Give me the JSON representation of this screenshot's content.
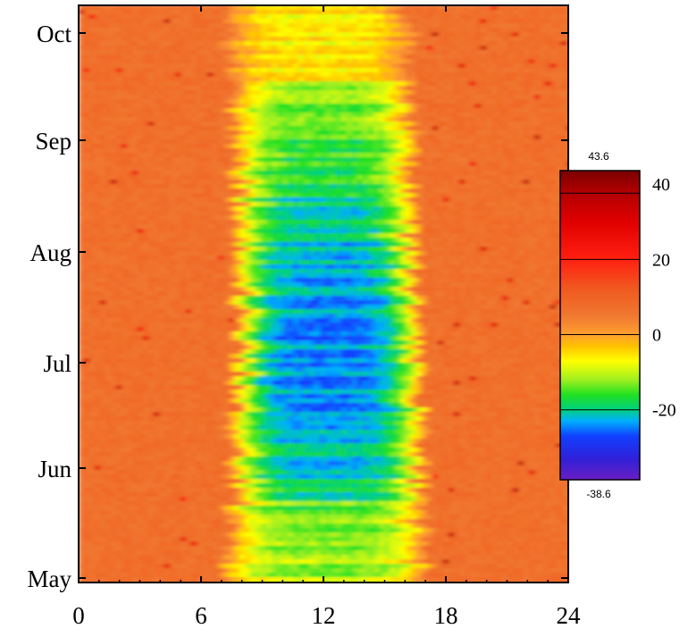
{
  "chart_data": {
    "type": "heatmap",
    "title": "",
    "xlabel": "",
    "ylabel": "",
    "x_ticks": [
      "0",
      "6",
      "12",
      "18",
      "24"
    ],
    "x_range": [
      0,
      24
    ],
    "y_ticks": [
      "May",
      "Jun",
      "Jul",
      "Aug",
      "Sep",
      "Oct"
    ],
    "y_range_months": [
      0,
      5.35
    ],
    "colorbar": {
      "max_label": "43.6",
      "min_label": "-38.6",
      "tick_labels": [
        "40",
        "20",
        "0",
        "-20"
      ],
      "tick_values": [
        40,
        20,
        0,
        -20
      ],
      "range": [
        -38.6,
        43.6
      ],
      "stops": [
        {
          "value": -38.6,
          "color": "#6a1ec4"
        },
        {
          "value": -33,
          "color": "#3020d8"
        },
        {
          "value": -27,
          "color": "#1040ff"
        },
        {
          "value": -23,
          "color": "#00b0ff"
        },
        {
          "value": -20,
          "color": "#00d080"
        },
        {
          "value": -16,
          "color": "#20e020"
        },
        {
          "value": -12,
          "color": "#a0f020"
        },
        {
          "value": -7,
          "color": "#ffff00"
        },
        {
          "value": -3,
          "color": "#ffc000"
        },
        {
          "value": 0,
          "color": "#ffa030"
        },
        {
          "value": 5,
          "color": "#f07830"
        },
        {
          "value": 12,
          "color": "#f05a20"
        },
        {
          "value": 20,
          "color": "#ff2010"
        },
        {
          "value": 30,
          "color": "#e00000"
        },
        {
          "value": 38,
          "color": "#b00000"
        },
        {
          "value": 43.6,
          "color": "#7a0000"
        }
      ]
    },
    "grid": false,
    "note_values": "Daily profile: near 0 (orange) before ~7h and after ~18h; negative (yellow-green-blue) between ~7h and ~17h, strongest mid-season around 11-14h. Higher values, in °C-like units, are not labeled."
  }
}
